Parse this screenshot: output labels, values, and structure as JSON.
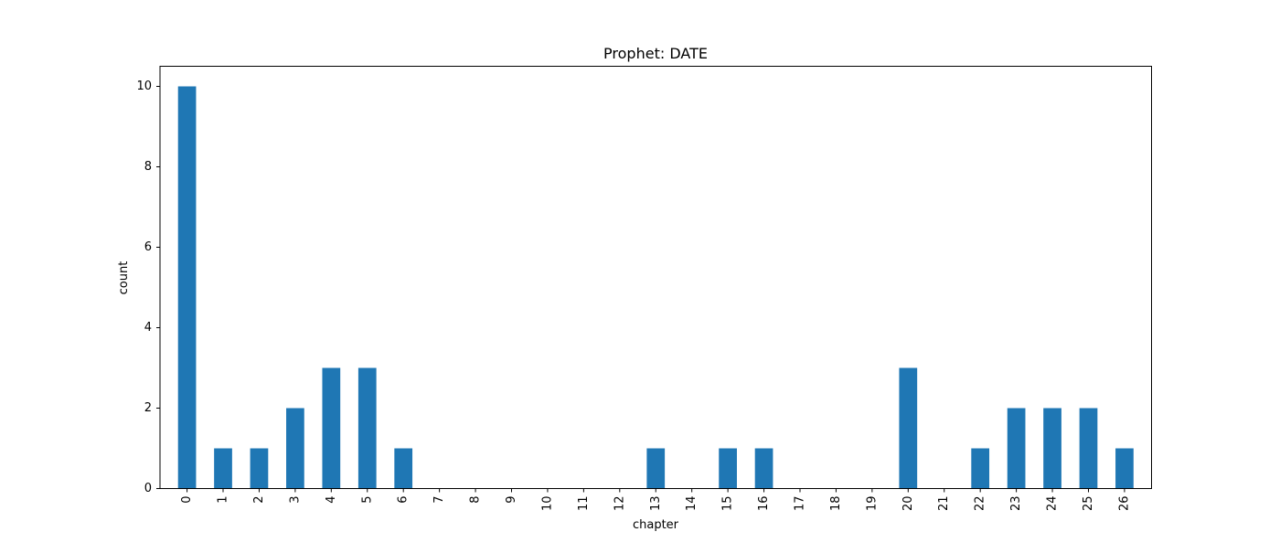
{
  "chart_data": {
    "type": "bar",
    "title": "Prophet: DATE",
    "xlabel": "chapter",
    "ylabel": "count",
    "categories": [
      "0",
      "1",
      "2",
      "3",
      "4",
      "5",
      "6",
      "7",
      "8",
      "9",
      "10",
      "11",
      "12",
      "13",
      "14",
      "15",
      "16",
      "17",
      "18",
      "19",
      "20",
      "21",
      "22",
      "23",
      "24",
      "25",
      "26"
    ],
    "values": [
      10,
      1,
      1,
      2,
      3,
      3,
      1,
      0,
      0,
      0,
      0,
      0,
      0,
      1,
      0,
      1,
      1,
      0,
      0,
      0,
      3,
      0,
      1,
      2,
      2,
      2,
      1
    ],
    "ylim": [
      0,
      10.5
    ],
    "yticks": [
      "0",
      "2",
      "4",
      "6",
      "8",
      "10"
    ],
    "ytick_values": [
      0,
      2,
      4,
      6,
      8,
      10
    ],
    "bar_color": "#1f77b4",
    "grid": false,
    "legend": "none"
  }
}
